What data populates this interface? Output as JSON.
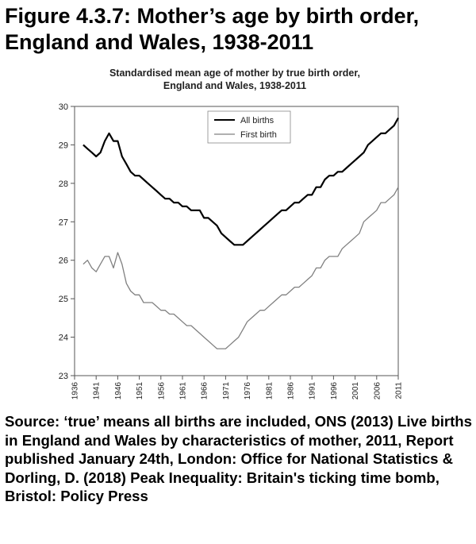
{
  "figure_title": "Figure 4.3.7: Mother’s age by birth order, England and Wales, 1938-2011",
  "source_text": "Source:  ‘true’ means all births are included, ONS (2013) Live births in England and Wales by characteristics of mother, 2011, Report published January 24th, London: Office for National Statistics & Dorling, D. (2018) Peak Inequality: Britain's ticking time bomb, Bristol: Policy Press",
  "chart_data": {
    "type": "line",
    "title": "Standardised mean age of mother by true birth order,",
    "subtitle": "England and Wales, 1938-2011",
    "xlabel": "",
    "ylabel": "",
    "xlim": [
      1936,
      2011
    ],
    "ylim": [
      23,
      30
    ],
    "x_ticks": [
      1936,
      1941,
      1946,
      1951,
      1956,
      1961,
      1966,
      1971,
      1976,
      1981,
      1986,
      1991,
      1996,
      2001,
      2006,
      2011
    ],
    "y_ticks": [
      23,
      24,
      25,
      26,
      27,
      28,
      29,
      30
    ],
    "grid": false,
    "legend": "top-center",
    "x": [
      1938,
      1939,
      1940,
      1941,
      1942,
      1943,
      1944,
      1945,
      1946,
      1947,
      1948,
      1949,
      1950,
      1951,
      1952,
      1953,
      1954,
      1955,
      1956,
      1957,
      1958,
      1959,
      1960,
      1961,
      1962,
      1963,
      1964,
      1965,
      1966,
      1967,
      1968,
      1969,
      1970,
      1971,
      1972,
      1973,
      1974,
      1975,
      1976,
      1977,
      1978,
      1979,
      1980,
      1981,
      1982,
      1983,
      1984,
      1985,
      1986,
      1987,
      1988,
      1989,
      1990,
      1991,
      1992,
      1993,
      1994,
      1995,
      1996,
      1997,
      1998,
      1999,
      2000,
      2001,
      2002,
      2003,
      2004,
      2005,
      2006,
      2007,
      2008,
      2009,
      2010,
      2011
    ],
    "series": [
      {
        "name": "All births",
        "color": "#000000",
        "values": [
          29.0,
          28.9,
          28.8,
          28.7,
          28.8,
          29.1,
          29.3,
          29.1,
          29.1,
          28.7,
          28.5,
          28.3,
          28.2,
          28.2,
          28.1,
          28.0,
          27.9,
          27.8,
          27.7,
          27.6,
          27.6,
          27.5,
          27.5,
          27.4,
          27.4,
          27.3,
          27.3,
          27.3,
          27.1,
          27.1,
          27.0,
          26.9,
          26.7,
          26.6,
          26.5,
          26.4,
          26.4,
          26.4,
          26.5,
          26.6,
          26.7,
          26.8,
          26.9,
          27.0,
          27.1,
          27.2,
          27.3,
          27.3,
          27.4,
          27.5,
          27.5,
          27.6,
          27.7,
          27.7,
          27.9,
          27.9,
          28.1,
          28.2,
          28.2,
          28.3,
          28.3,
          28.4,
          28.5,
          28.6,
          28.7,
          28.8,
          29.0,
          29.1,
          29.2,
          29.3,
          29.3,
          29.4,
          29.5,
          29.7
        ]
      },
      {
        "name": "First birth",
        "color": "#808080",
        "values": [
          25.9,
          26.0,
          25.8,
          25.7,
          25.9,
          26.1,
          26.1,
          25.8,
          26.2,
          25.9,
          25.4,
          25.2,
          25.1,
          25.1,
          24.9,
          24.9,
          24.9,
          24.8,
          24.7,
          24.7,
          24.6,
          24.6,
          24.5,
          24.4,
          24.3,
          24.3,
          24.2,
          24.1,
          24.0,
          23.9,
          23.8,
          23.7,
          23.7,
          23.7,
          23.8,
          23.9,
          24.0,
          24.2,
          24.4,
          24.5,
          24.6,
          24.7,
          24.7,
          24.8,
          24.9,
          25.0,
          25.1,
          25.1,
          25.2,
          25.3,
          25.3,
          25.4,
          25.5,
          25.6,
          25.8,
          25.8,
          26.0,
          26.1,
          26.1,
          26.1,
          26.3,
          26.4,
          26.5,
          26.6,
          26.7,
          27.0,
          27.1,
          27.2,
          27.3,
          27.5,
          27.5,
          27.6,
          27.7,
          27.9
        ]
      }
    ]
  }
}
